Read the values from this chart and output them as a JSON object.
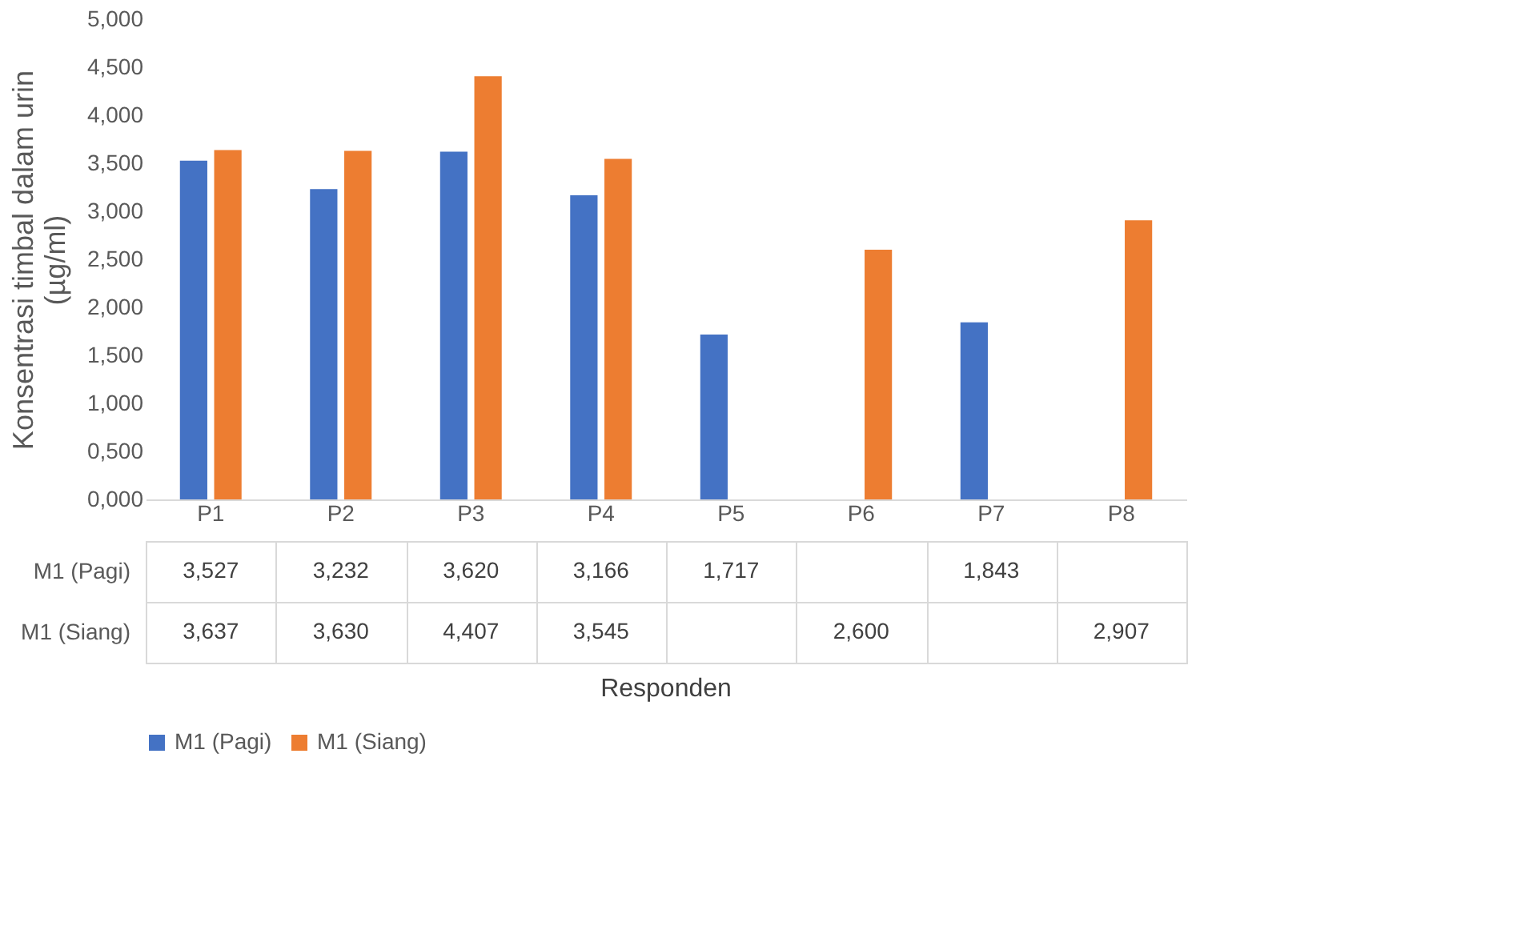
{
  "chart_data": {
    "type": "bar",
    "ylabel": "Konsentrasi timbal dalam urin (µg/ml)",
    "annotations": [
      "Responden"
    ],
    "categories": [
      "P1",
      "P2",
      "P3",
      "P4",
      "P5",
      "P6",
      "P7",
      "P8"
    ],
    "series": [
      {
        "name": "M1 (Pagi)",
        "color": "#4472c4",
        "values": [
          3.527,
          3.232,
          3.62,
          3.166,
          1.717,
          null,
          1.843,
          null
        ],
        "value_labels": [
          "3,527",
          "3,232",
          "3,620",
          "3,166",
          "1,717",
          null,
          "1,843",
          null
        ]
      },
      {
        "name": "M1 (Siang)",
        "color": "#ed7d31",
        "values": [
          3.637,
          3.63,
          4.407,
          3.545,
          null,
          2.6,
          null,
          2.907
        ],
        "value_labels": [
          "3,637",
          "3,630",
          "4,407",
          "3,545",
          null,
          "2,600",
          null,
          "2,907"
        ]
      }
    ],
    "ylim": [
      0,
      5
    ],
    "yticks": [
      {
        "value": 0,
        "label": "0,000"
      },
      {
        "value": 0.5,
        "label": "0,500"
      },
      {
        "value": 1,
        "label": "1,000"
      },
      {
        "value": 1.5,
        "label": "1,500"
      },
      {
        "value": 2,
        "label": "2,000"
      },
      {
        "value": 2.5,
        "label": "2,500"
      },
      {
        "value": 3,
        "label": "3,000"
      },
      {
        "value": 3.5,
        "label": "3,500"
      },
      {
        "value": 4,
        "label": "4,000"
      },
      {
        "value": 4.5,
        "label": "4,500"
      },
      {
        "value": 5,
        "label": "5,000"
      }
    ],
    "legend": "bottom",
    "grid": false
  }
}
